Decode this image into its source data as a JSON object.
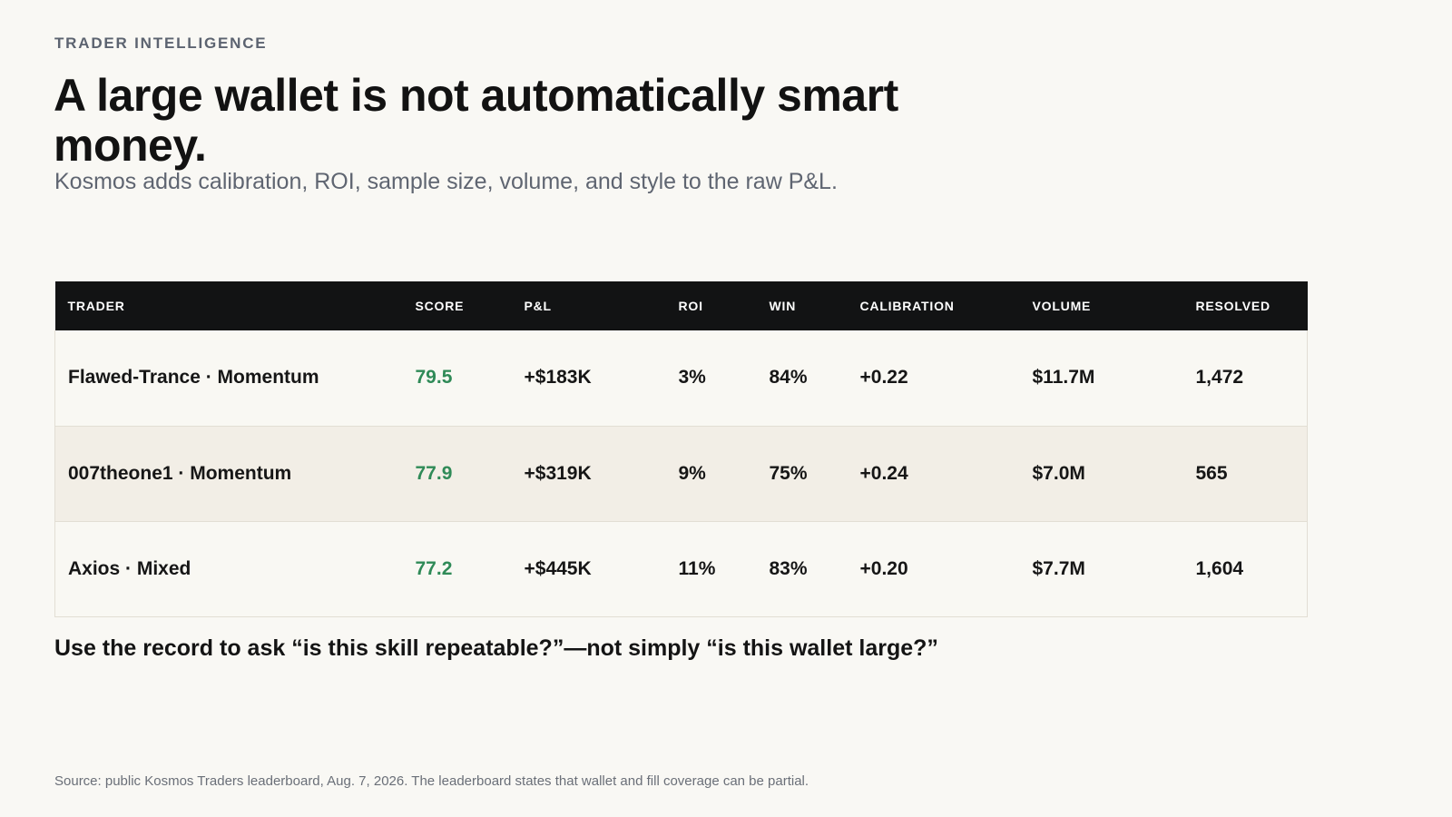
{
  "eyebrow": "TRADER INTELLIGENCE",
  "headline": "A large wallet is not automatically smart money.",
  "subhead": "Kosmos adds calibration, ROI, sample size, volume, and style to the raw P&L.",
  "table": {
    "headers": [
      "TRADER",
      "SCORE",
      "P&L",
      "ROI",
      "WIN",
      "CALIBRATION",
      "VOLUME",
      "RESOLVED"
    ],
    "rows": [
      [
        "Flawed-Trance · Momentum",
        "79.5",
        "+$183K",
        "3%",
        "84%",
        "+0.22",
        "$11.7M",
        "1,472"
      ],
      [
        "007theone1 · Momentum",
        "77.9",
        "+$319K",
        "9%",
        "75%",
        "+0.24",
        "$7.0M",
        "565"
      ],
      [
        "Axios · Mixed",
        "77.2",
        "+$445K",
        "11%",
        "83%",
        "+0.20",
        "$7.7M",
        "1,604"
      ]
    ]
  },
  "takeaway": "Use the record to ask “is this skill repeatable?”—not simply “is this wallet large?”",
  "source": "Source: public Kosmos Traders leaderboard, Aug. 7, 2026. The leaderboard states that wallet and fill coverage can be partial.",
  "colors": {
    "background": "#f9f8f4",
    "header_bg": "#121314",
    "score_green": "#2f8a57",
    "row_alt": "#f2eee6"
  }
}
